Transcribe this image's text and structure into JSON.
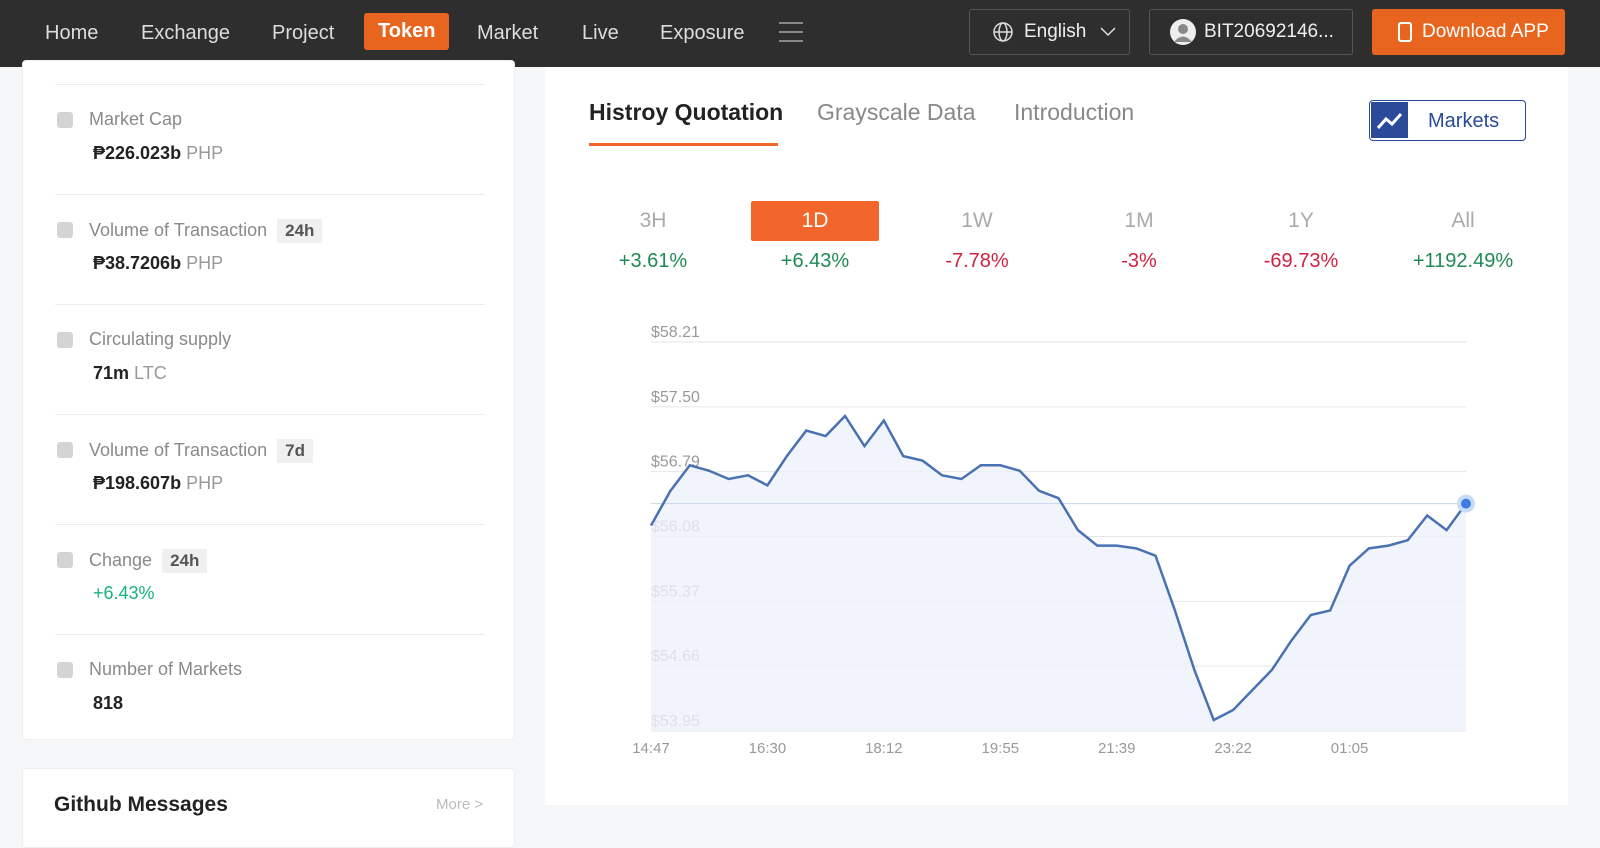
{
  "nav": {
    "items": [
      "Home",
      "Exchange",
      "Project",
      "Token",
      "Market",
      "Live",
      "Exposure"
    ],
    "active": 3,
    "language": "English",
    "account": "BIT20692146...",
    "download": "Download APP"
  },
  "stats": [
    {
      "label": "Market Cap",
      "value": "₱226.023b",
      "unit": "PHP"
    },
    {
      "label": "Volume of Transaction",
      "tag": "24h",
      "value": "₱38.7206b",
      "unit": "PHP"
    },
    {
      "label": "Circulating supply",
      "value": "71m",
      "unit": "LTC"
    },
    {
      "label": "Volume of Transaction",
      "tag": "7d",
      "value": "₱198.607b",
      "unit": "PHP"
    },
    {
      "label": "Change",
      "tag": "24h",
      "value": "+6.43%"
    },
    {
      "label": "Number of Markets",
      "value": "818"
    }
  ],
  "github": {
    "title": "Github Messages",
    "more": "More >"
  },
  "tabs": {
    "items": [
      "Histroy Quotation",
      "Grayscale Data",
      "Introduction"
    ],
    "active": 0
  },
  "markets_button": "Markets",
  "periods": {
    "items": [
      {
        "label": "3H",
        "change": "+3.61%"
      },
      {
        "label": "1D",
        "change": "+6.43%"
      },
      {
        "label": "1W",
        "change": "-7.78%"
      },
      {
        "label": "1M",
        "change": "-3%"
      },
      {
        "label": "1Y",
        "change": "-69.73%"
      },
      {
        "label": "All",
        "change": "+1192.49%"
      }
    ],
    "active": 1
  },
  "chart_data": {
    "type": "line",
    "color": "#4a72b2",
    "grid": true,
    "categories": [
      "14:47",
      null,
      null,
      null,
      null,
      null,
      "16:30",
      null,
      null,
      null,
      null,
      null,
      "18:12",
      null,
      null,
      null,
      null,
      null,
      "19:55",
      null,
      null,
      null,
      null,
      null,
      "21:39",
      null,
      null,
      null,
      null,
      null,
      "23:22",
      null,
      null,
      null,
      null,
      null,
      "01:05",
      null,
      null,
      null,
      null,
      null,
      null
    ],
    "values": [
      56.2,
      56.58,
      56.86,
      56.8,
      56.71,
      56.75,
      56.64,
      56.96,
      57.24,
      57.18,
      57.4,
      57.07,
      57.35,
      56.96,
      56.91,
      56.75,
      56.71,
      56.86,
      56.86,
      56.8,
      56.58,
      56.5,
      56.15,
      55.98,
      55.98,
      55.95,
      55.87,
      55.27,
      54.62,
      54.07,
      54.18,
      54.4,
      54.62,
      54.94,
      55.22,
      55.27,
      55.76,
      55.95,
      55.98,
      56.04,
      56.31,
      56.15,
      56.44
    ],
    "ylim": [
      53.95,
      58.21
    ],
    "yticks": [
      {
        "value": 53.95,
        "label": "$53.95"
      },
      {
        "value": 54.66,
        "label": "$54.66"
      },
      {
        "value": 55.37,
        "label": "$55.37"
      },
      {
        "value": 56.08,
        "label": "$56.08"
      },
      {
        "value": 56.79,
        "label": "$56.79"
      },
      {
        "value": 57.5,
        "label": "$57.50"
      },
      {
        "value": 58.21,
        "label": "$58.21"
      }
    ]
  }
}
